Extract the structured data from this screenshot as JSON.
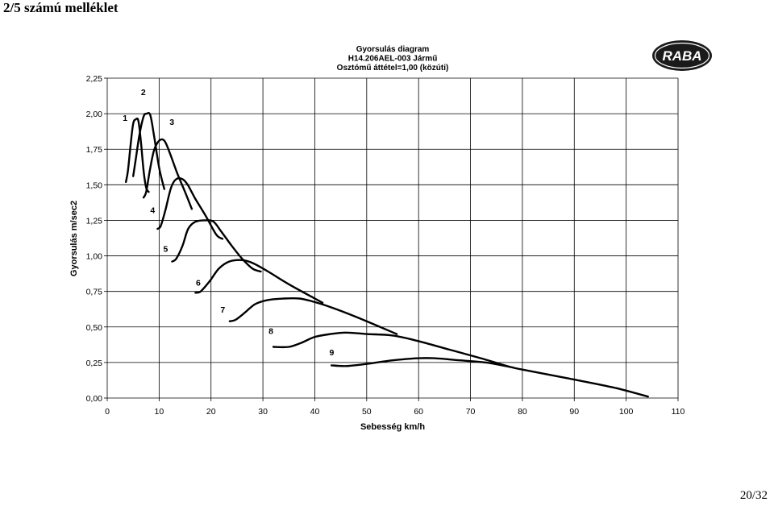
{
  "page": {
    "heading": "2/5 számú melléklet",
    "page_number": "20/32"
  },
  "logo": {
    "text": "RABA"
  },
  "chart_data": {
    "type": "line",
    "title": [
      "Gyorsulás diagram",
      "H14.206AEL-003 Jármű",
      "Osztómű áttétel=1,00 (közúti)"
    ],
    "xlabel": "Sebesség km/h",
    "ylabel": "Gyorsulás m/sec2",
    "xlim": [
      0,
      110
    ],
    "ylim": [
      0,
      2.25
    ],
    "x_ticks": [
      0,
      10,
      20,
      30,
      40,
      50,
      60,
      70,
      80,
      90,
      100,
      110
    ],
    "x_tick_labels": [
      "0",
      "10",
      "20",
      "30",
      "40",
      "50",
      "60",
      "70",
      "80",
      "90",
      "100",
      "110"
    ],
    "y_ticks": [
      0,
      0.25,
      0.5,
      0.75,
      1.0,
      1.25,
      1.5,
      1.75,
      2.0,
      2.25
    ],
    "y_tick_labels": [
      "0,00",
      "0,25",
      "0,50",
      "0,75",
      "1,00",
      "1,25",
      "1,50",
      "1,75",
      "2,00",
      "2,25"
    ],
    "grid": true,
    "series": [
      {
        "name": "1",
        "label_at": [
          3.0,
          1.95
        ],
        "points": [
          [
            3.6,
            1.52
          ],
          [
            4.0,
            1.6
          ],
          [
            4.5,
            1.78
          ],
          [
            5.0,
            1.93
          ],
          [
            5.5,
            1.96
          ],
          [
            6.0,
            1.95
          ],
          [
            6.5,
            1.8
          ],
          [
            7.0,
            1.6
          ],
          [
            7.5,
            1.48
          ],
          [
            8.0,
            1.45
          ]
        ]
      },
      {
        "name": "2",
        "label_at": [
          6.5,
          2.13
        ],
        "points": [
          [
            5.0,
            1.56
          ],
          [
            5.5,
            1.68
          ],
          [
            6.2,
            1.85
          ],
          [
            7.0,
            1.98
          ],
          [
            7.6,
            2.0
          ],
          [
            8.3,
            1.99
          ],
          [
            9.0,
            1.85
          ],
          [
            10.0,
            1.62
          ],
          [
            11.0,
            1.47
          ]
        ]
      },
      {
        "name": "3",
        "label_at": [
          12.0,
          1.92
        ],
        "points": [
          [
            7.0,
            1.41
          ],
          [
            7.5,
            1.45
          ],
          [
            8.2,
            1.6
          ],
          [
            9.0,
            1.74
          ],
          [
            10.0,
            1.81
          ],
          [
            11.0,
            1.81
          ],
          [
            12.0,
            1.73
          ],
          [
            13.5,
            1.58
          ],
          [
            15.0,
            1.45
          ],
          [
            16.3,
            1.33
          ]
        ]
      },
      {
        "name": "4",
        "label_at": [
          8.3,
          1.3
        ],
        "points": [
          [
            9.7,
            1.19
          ],
          [
            10.3,
            1.21
          ],
          [
            11.2,
            1.32
          ],
          [
            12.3,
            1.48
          ],
          [
            13.3,
            1.54
          ],
          [
            14.5,
            1.54
          ],
          [
            15.5,
            1.5
          ],
          [
            17.0,
            1.4
          ],
          [
            19.0,
            1.28
          ],
          [
            21.0,
            1.15
          ],
          [
            22.2,
            1.12
          ]
        ]
      },
      {
        "name": "5",
        "label_at": [
          10.8,
          1.03
        ],
        "points": [
          [
            12.5,
            0.96
          ],
          [
            13.3,
            0.98
          ],
          [
            14.5,
            1.07
          ],
          [
            15.6,
            1.19
          ],
          [
            17.0,
            1.24
          ],
          [
            19.0,
            1.25
          ],
          [
            20.5,
            1.24
          ],
          [
            22.0,
            1.17
          ],
          [
            24.0,
            1.07
          ],
          [
            26.0,
            0.98
          ],
          [
            28.0,
            0.91
          ],
          [
            29.6,
            0.89
          ]
        ]
      },
      {
        "name": "6",
        "label_at": [
          17.1,
          0.79
        ],
        "points": [
          [
            17.0,
            0.74
          ],
          [
            18.0,
            0.75
          ],
          [
            19.7,
            0.82
          ],
          [
            21.5,
            0.91
          ],
          [
            23.5,
            0.96
          ],
          [
            26.0,
            0.97
          ],
          [
            28.0,
            0.95
          ],
          [
            31.0,
            0.89
          ],
          [
            35.0,
            0.8
          ],
          [
            40.0,
            0.7
          ],
          [
            41.5,
            0.67
          ]
        ]
      },
      {
        "name": "7",
        "label_at": [
          21.8,
          0.6
        ],
        "points": [
          [
            23.6,
            0.54
          ],
          [
            24.7,
            0.55
          ],
          [
            26.5,
            0.6
          ],
          [
            28.5,
            0.66
          ],
          [
            31.0,
            0.69
          ],
          [
            34.0,
            0.7
          ],
          [
            37.0,
            0.7
          ],
          [
            39.5,
            0.68
          ],
          [
            43.0,
            0.64
          ],
          [
            48.0,
            0.57
          ],
          [
            55.8,
            0.45
          ]
        ]
      },
      {
        "name": "8",
        "label_at": [
          31.1,
          0.45
        ],
        "points": [
          [
            32.0,
            0.36
          ],
          [
            35.0,
            0.36
          ],
          [
            37.5,
            0.39
          ],
          [
            40.0,
            0.43
          ],
          [
            43.0,
            0.45
          ],
          [
            46.0,
            0.46
          ],
          [
            50.0,
            0.45
          ],
          [
            55.0,
            0.44
          ],
          [
            60.0,
            0.4
          ],
          [
            66.0,
            0.34
          ],
          [
            72.0,
            0.28
          ],
          [
            77.5,
            0.22
          ]
        ]
      },
      {
        "name": "9",
        "label_at": [
          42.8,
          0.3
        ],
        "points": [
          [
            43.2,
            0.23
          ],
          [
            46.0,
            0.225
          ],
          [
            50.0,
            0.24
          ],
          [
            55.0,
            0.265
          ],
          [
            60.0,
            0.28
          ],
          [
            63.0,
            0.28
          ],
          [
            68.0,
            0.265
          ],
          [
            73.0,
            0.25
          ],
          [
            77.5,
            0.22
          ],
          [
            80.0,
            0.2
          ],
          [
            90.0,
            0.13
          ],
          [
            98.0,
            0.07
          ],
          [
            104.2,
            0.01
          ]
        ]
      }
    ]
  }
}
